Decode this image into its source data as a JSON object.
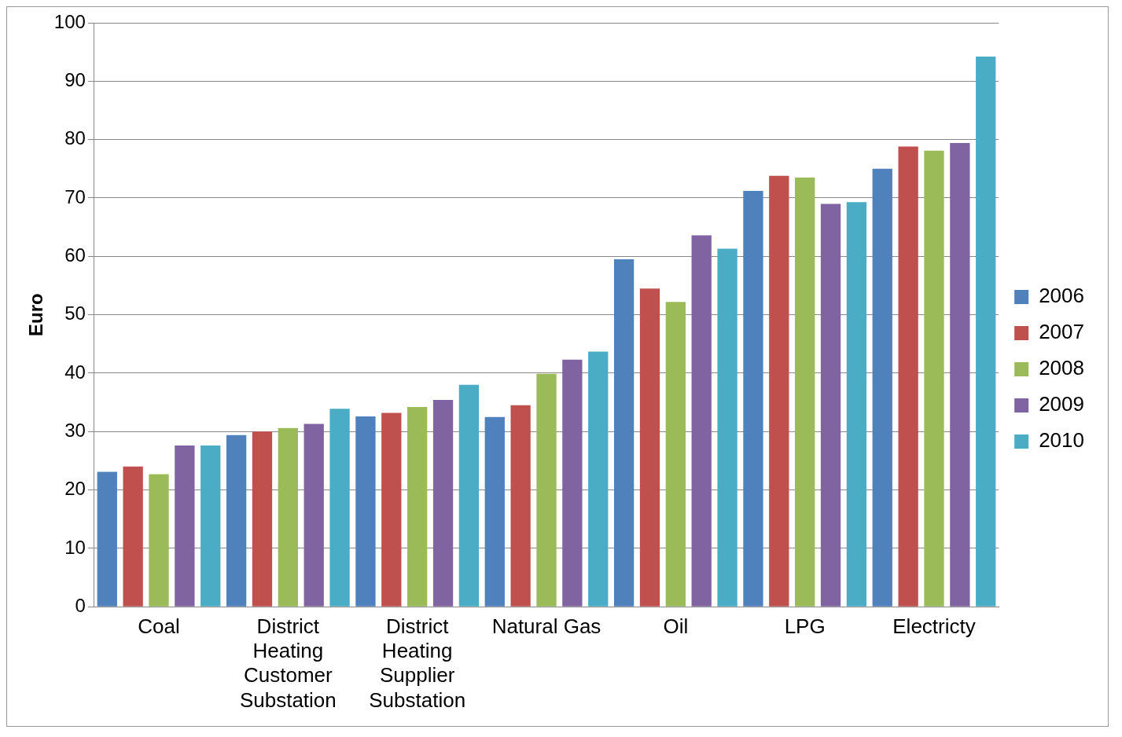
{
  "chart_data": {
    "type": "bar",
    "ylabel": "Euro",
    "categories": [
      "Coal",
      "District Heating Customer Substation",
      "District Heating Supplier Substation",
      "Natural Gas",
      "Oil",
      "LPG",
      "Electricty"
    ],
    "series": [
      {
        "name": "2006",
        "color": "#4f81bd",
        "values": [
          23.1,
          29.4,
          32.6,
          32.5,
          59.5,
          71.2,
          75.0
        ]
      },
      {
        "name": "2007",
        "color": "#c0504d",
        "values": [
          24.0,
          30.0,
          33.2,
          34.5,
          54.5,
          73.8,
          78.8
        ]
      },
      {
        "name": "2008",
        "color": "#9bbb59",
        "values": [
          22.7,
          30.6,
          34.2,
          39.9,
          52.2,
          73.5,
          78.1
        ]
      },
      {
        "name": "2009",
        "color": "#8064a2",
        "values": [
          27.6,
          31.3,
          35.4,
          42.3,
          63.6,
          69.0,
          79.4
        ]
      },
      {
        "name": "2010",
        "color": "#4bacc6",
        "values": [
          27.6,
          33.9,
          38.0,
          43.7,
          61.3,
          69.3,
          94.2
        ]
      }
    ],
    "ylim": [
      0,
      100
    ],
    "yticks": [
      0,
      10,
      20,
      30,
      40,
      50,
      60,
      70,
      80,
      90,
      100
    ],
    "grid": "y",
    "legend": "right"
  }
}
